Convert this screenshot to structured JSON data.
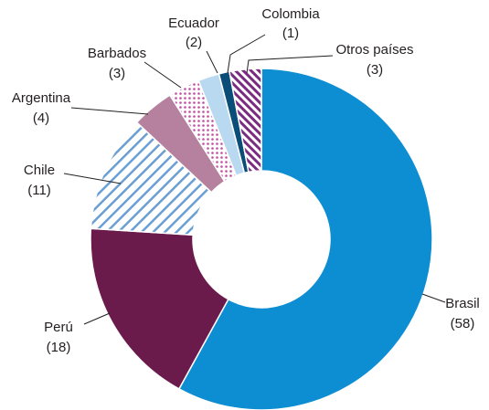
{
  "chart_data": {
    "type": "donut",
    "categories": [
      "Brasil",
      "Perú",
      "Chile",
      "Argentina",
      "Barbados",
      "Ecuador",
      "Colombia",
      "Otros países"
    ],
    "values": [
      58,
      18,
      11,
      4,
      3,
      2,
      1,
      3
    ],
    "value_labels": [
      "(58)",
      "(18)",
      "(11)",
      "(4)",
      "(3)",
      "(2)",
      "(1)",
      "(3)"
    ],
    "colors": [
      "#0d8ed3",
      "#6b1b4b",
      "#6a9fd4",
      "#b5819f",
      "#c04ea0",
      "#b9d9f1",
      "#0b4d79",
      "#7a2d80"
    ],
    "patterns": [
      "solid",
      "solid",
      "stripes",
      "solid",
      "dots",
      "solid",
      "solid",
      "stripes"
    ]
  }
}
